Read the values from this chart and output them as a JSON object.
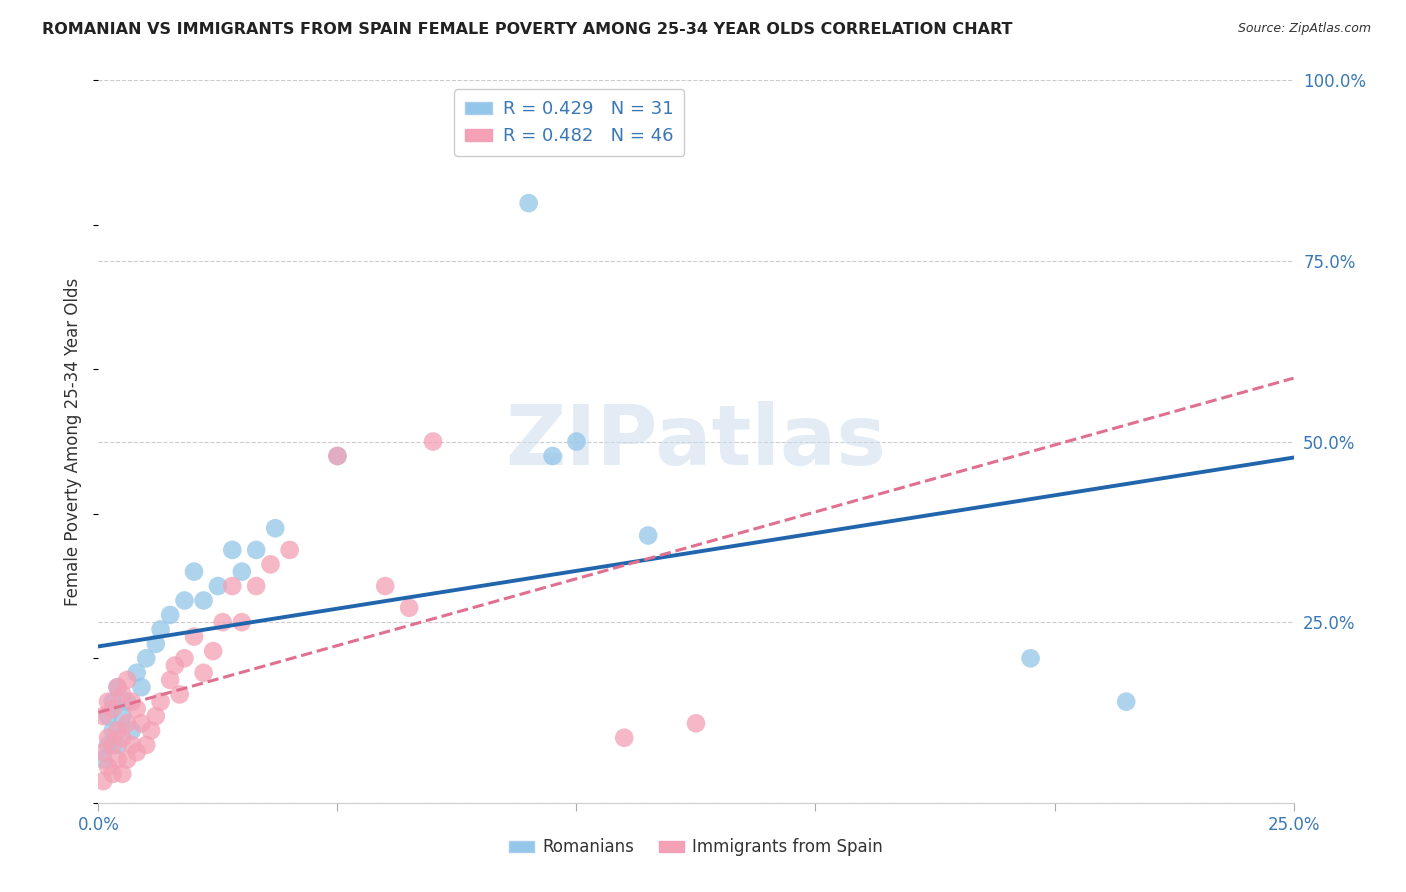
{
  "title": "ROMANIAN VS IMMIGRANTS FROM SPAIN FEMALE POVERTY AMONG 25-34 YEAR OLDS CORRELATION CHART",
  "source": "Source: ZipAtlas.com",
  "ylabel": "Female Poverty Among 25-34 Year Olds",
  "xlim": [
    0.0,
    0.25
  ],
  "ylim": [
    0.0,
    1.0
  ],
  "xtick_positions": [
    0.0,
    0.05,
    0.1,
    0.15,
    0.2,
    0.25
  ],
  "xtick_labels": [
    "0.0%",
    "",
    "",
    "",
    "",
    "25.0%"
  ],
  "ytick_positions": [
    0.0,
    0.25,
    0.5,
    0.75,
    1.0
  ],
  "ytick_labels": [
    "",
    "25.0%",
    "50.0%",
    "75.0%",
    "100.0%"
  ],
  "romanian_R": 0.429,
  "romanian_N": 31,
  "spain_R": 0.482,
  "spain_N": 46,
  "romanian_color": "#93c6e8",
  "spain_color": "#f4a0b5",
  "regression_romanian_color": "#2166ac",
  "regression_spain_color": "#e07090",
  "watermark": "ZIPatlas",
  "romanian_x": [
    0.001,
    0.002,
    0.002,
    0.003,
    0.003,
    0.004,
    0.004,
    0.005,
    0.006,
    0.007,
    0.008,
    0.009,
    0.01,
    0.012,
    0.013,
    0.015,
    0.018,
    0.02,
    0.022,
    0.025,
    0.028,
    0.03,
    0.033,
    0.037,
    0.05,
    0.09,
    0.095,
    0.1,
    0.115,
    0.195,
    0.215
  ],
  "romanian_y": [
    0.06,
    0.08,
    0.12,
    0.1,
    0.14,
    0.08,
    0.16,
    0.12,
    0.14,
    0.1,
    0.18,
    0.16,
    0.2,
    0.22,
    0.24,
    0.26,
    0.28,
    0.32,
    0.28,
    0.3,
    0.35,
    0.32,
    0.35,
    0.38,
    0.48,
    0.83,
    0.48,
    0.5,
    0.37,
    0.2,
    0.14
  ],
  "spain_x": [
    0.001,
    0.001,
    0.001,
    0.002,
    0.002,
    0.002,
    0.003,
    0.003,
    0.003,
    0.004,
    0.004,
    0.004,
    0.005,
    0.005,
    0.005,
    0.006,
    0.006,
    0.006,
    0.007,
    0.007,
    0.008,
    0.008,
    0.009,
    0.01,
    0.011,
    0.012,
    0.013,
    0.015,
    0.016,
    0.017,
    0.018,
    0.02,
    0.022,
    0.024,
    0.026,
    0.028,
    0.03,
    0.033,
    0.036,
    0.04,
    0.05,
    0.06,
    0.065,
    0.07,
    0.11,
    0.125
  ],
  "spain_y": [
    0.03,
    0.07,
    0.12,
    0.05,
    0.09,
    0.14,
    0.04,
    0.08,
    0.13,
    0.06,
    0.1,
    0.16,
    0.04,
    0.09,
    0.15,
    0.06,
    0.11,
    0.17,
    0.08,
    0.14,
    0.07,
    0.13,
    0.11,
    0.08,
    0.1,
    0.12,
    0.14,
    0.17,
    0.19,
    0.15,
    0.2,
    0.23,
    0.18,
    0.21,
    0.25,
    0.3,
    0.25,
    0.3,
    0.33,
    0.35,
    0.48,
    0.3,
    0.27,
    0.5,
    0.09,
    0.11
  ]
}
